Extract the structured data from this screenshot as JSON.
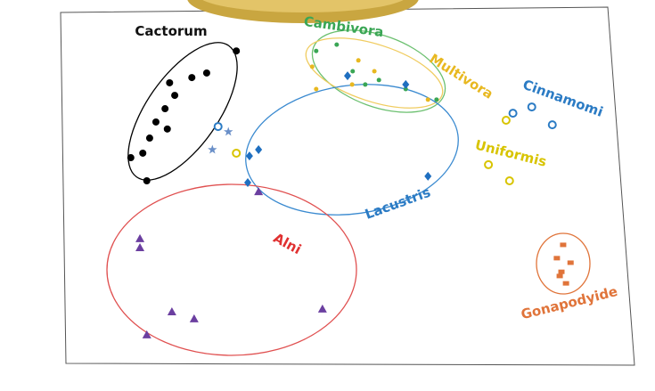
{
  "chart_data": {
    "type": "scatter",
    "xlim": [
      0,
      100
    ],
    "ylim": [
      0,
      100
    ],
    "series": [
      {
        "name": "Cactorum",
        "color": "#000000",
        "marker": "circle",
        "x": [
          30.5,
          25.3,
          22.7,
          18.8,
          19.7,
          18.0,
          16.4,
          18.4,
          15.3,
          14.1,
          12.0,
          14.8
        ],
        "values": [
          88.5,
          82.2,
          80.9,
          79.4,
          75.8,
          72.0,
          68.2,
          66.2,
          63.6,
          59.3,
          58.0,
          51.4
        ]
      },
      {
        "name": "Cambivora",
        "color": "#3aa655",
        "marker": "dot",
        "x": [
          44.5,
          48.1,
          50.9,
          53.1,
          55.5,
          65.6,
          60.2
        ],
        "values": [
          88.5,
          90.3,
          82.7,
          78.9,
          80.2,
          74.6,
          77.6
        ]
      },
      {
        "name": "Multivora",
        "color": "#e8b820",
        "marker": "dot",
        "x": [
          43.8,
          51.9,
          54.7,
          64.1,
          50.8,
          44.5
        ],
        "values": [
          84.0,
          85.8,
          82.7,
          74.6,
          78.9,
          77.6
        ]
      },
      {
        "name": "Cinnamomi",
        "color": "#2b7bc4",
        "marker": "ring",
        "x": [
          79.0,
          82.3,
          85.9,
          27.3
        ],
        "values": [
          70.7,
          72.5,
          67.4,
          66.9
        ]
      },
      {
        "color": "#6a8fc8",
        "marker": "star",
        "x": [
          29.1,
          26.3
        ],
        "values": [
          65.4,
          60.3
        ]
      },
      {
        "name": "Uniformis",
        "color": "#d8c400",
        "marker": "ring",
        "x": [
          77.8,
          30.5,
          74.7,
          78.4
        ],
        "values": [
          68.7,
          59.3,
          56.0,
          51.4
        ]
      },
      {
        "name": "Lacustris",
        "color": "#1f6fc0",
        "marker": "diamond",
        "x": [
          50.0,
          60.2,
          34.4,
          32.8,
          32.5,
          64.1
        ],
        "values": [
          81.4,
          78.9,
          60.3,
          58.5,
          50.9,
          52.7
        ]
      },
      {
        "name": "Alni",
        "color": "#6b3fa0",
        "marker": "triangle",
        "x": [
          13.6,
          13.6,
          34.4,
          19.2,
          23.1,
          14.8,
          45.6
        ],
        "values": [
          34.9,
          32.3,
          48.3,
          14.0,
          12.0,
          7.4,
          14.8
        ]
      },
      {
        "name": "Gonapodyide",
        "color": "#e0743a",
        "marker": "square",
        "x": [
          87.8,
          86.7,
          89.1,
          87.5,
          88.3,
          87.2
        ],
        "values": [
          33.1,
          29.3,
          28.0,
          25.4,
          22.1,
          24.2
        ]
      }
    ]
  }
}
